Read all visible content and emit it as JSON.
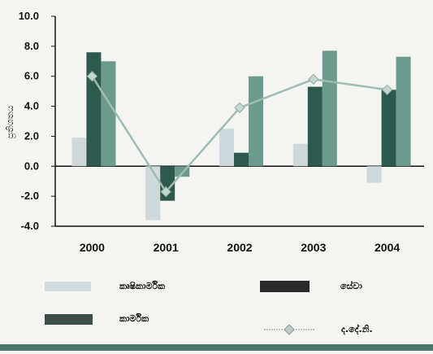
{
  "chart_data": {
    "type": "bar",
    "title": "",
    "ylabel": "ප්‍රතිශතය",
    "xlabel": "",
    "categories": [
      "2000",
      "2001",
      "2002",
      "2003",
      "2004"
    ],
    "ylim": [
      -4.0,
      10.0
    ],
    "yticks": [
      "10.0",
      "8.0",
      "6.0",
      "4.0",
      "2.0",
      "0.0",
      "-2.0",
      "-4.0"
    ],
    "ytick_values": [
      10,
      8,
      6,
      4,
      2,
      0,
      -2,
      -4
    ],
    "series": [
      {
        "name": "කෘෂිකාර්මික",
        "kind": "bar",
        "color": "#cfd9dc",
        "values": [
          1.9,
          -3.6,
          2.5,
          1.5,
          -1.1
        ]
      },
      {
        "name": "කාර්මික",
        "kind": "bar",
        "color": "#2e5a4e",
        "values": [
          7.6,
          -2.3,
          0.9,
          5.3,
          5.1
        ]
      },
      {
        "name": "සේවා",
        "kind": "bar",
        "color": "#6c9a8c",
        "values": [
          7.0,
          -0.7,
          6.0,
          7.7,
          7.3
        ]
      },
      {
        "name": "ද.දේ.නි.",
        "kind": "line",
        "color": "#9dbdb4",
        "values": [
          6.0,
          -1.7,
          3.9,
          5.8,
          5.1
        ]
      }
    ],
    "grid": false,
    "legend_position": "bottom"
  },
  "legend": {
    "agri": "කෘෂිකාර්මික",
    "service": "සේවා",
    "industry": "කාර්මික",
    "gdp": "ද.දේ.නි."
  }
}
